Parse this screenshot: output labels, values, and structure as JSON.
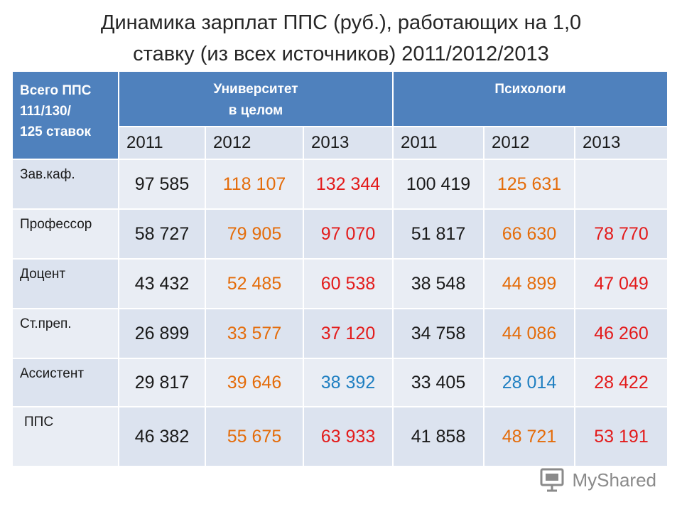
{
  "title": {
    "line1": "Динамика зарплат ППС (руб.), работающих на 1,0",
    "line2": "ставку  (из всех источников) 2011/2012/2013"
  },
  "table": {
    "corner": {
      "line1": "Всего ППС",
      "line2": "111/130/",
      "line3": "125 ставок"
    },
    "groups": [
      {
        "line1": "Университет",
        "line2": "в целом"
      },
      {
        "line1": "Психологи",
        "line2": ""
      }
    ],
    "years": [
      "2011",
      "2012",
      "2013",
      "2011",
      "2012",
      "2013"
    ],
    "rows": [
      {
        "label": "Зав.каф.",
        "values": [
          "97 585",
          "118 107",
          "132 344",
          "100 419",
          "125 631",
          ""
        ],
        "colors": [
          "black",
          "orange",
          "red",
          "black",
          "orange",
          "black"
        ]
      },
      {
        "label": "Профессор",
        "values": [
          "58 727",
          "79 905",
          "97 070",
          "51 817",
          "66 630",
          "78 770"
        ],
        "colors": [
          "black",
          "orange",
          "red",
          "black",
          "orange",
          "red"
        ]
      },
      {
        "label": "Доцент",
        "values": [
          "43 432",
          "52 485",
          "60 538",
          "38 548",
          "44 899",
          "47 049"
        ],
        "colors": [
          "black",
          "orange",
          "red",
          "black",
          "orange",
          "red"
        ]
      },
      {
        "label": "Ст.преп.",
        "values": [
          "26 899",
          "33 577",
          "37 120",
          "34 758",
          "44 086",
          "46 260"
        ],
        "colors": [
          "black",
          "orange",
          "red",
          "black",
          "orange",
          "red"
        ]
      },
      {
        "label": "Ассистент",
        "values": [
          "29 817",
          "39 646",
          "38 392",
          "33 405",
          "28 014",
          "28 422"
        ],
        "colors": [
          "black",
          "orange",
          "blue",
          "black",
          "blue",
          "red"
        ]
      },
      {
        "label": "ППС",
        "values": [
          "46 382",
          "55 675",
          "63 933",
          "41 858",
          "48 721",
          "53 191"
        ],
        "colors": [
          "black",
          "orange",
          "red",
          "black",
          "orange",
          "red"
        ]
      }
    ]
  },
  "palette": {
    "header_blue": "#4f81bd",
    "light_cell": "#e9edf4",
    "mid_cell": "#dce3ef",
    "value_black": "#1a1a1a",
    "value_orange": "#e46c0a",
    "value_red": "#e31b1b",
    "value_blue": "#1f7fc1"
  },
  "watermark": {
    "icon": "presentation-icon",
    "text": "MyShared"
  }
}
